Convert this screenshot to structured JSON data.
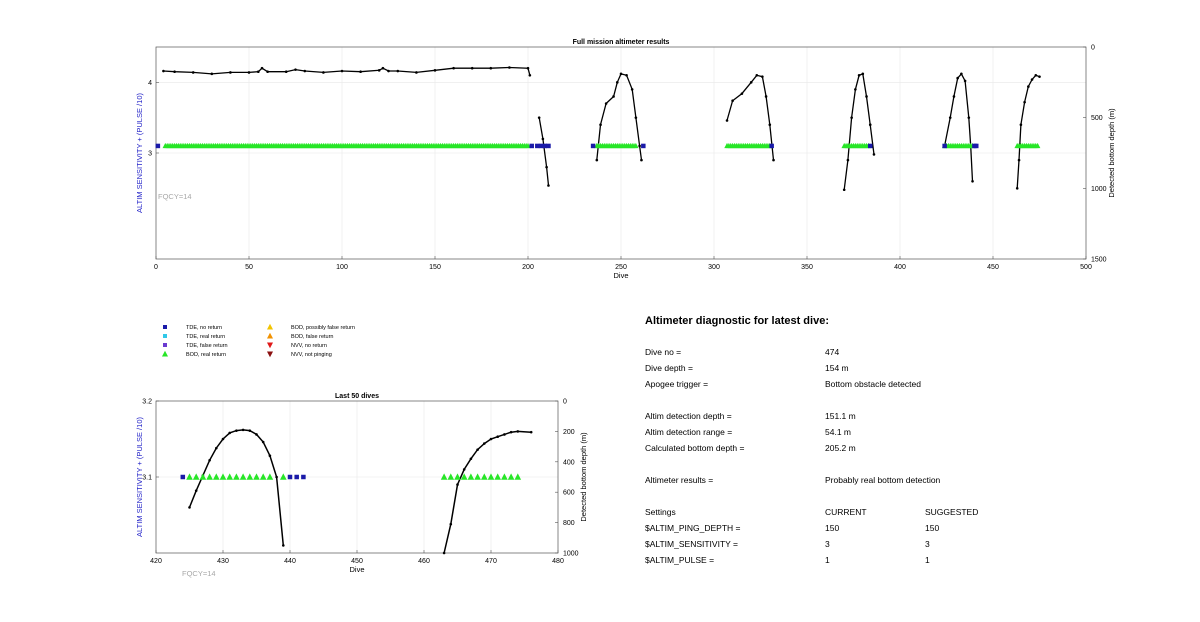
{
  "colors": {
    "blue_label": "#2323c8",
    "line": "#000000",
    "green": "#27e627",
    "blue_square": "#1a1aa8",
    "cyan": "#30c8e8",
    "purple": "#6a3ad0",
    "gold": "#f2c400",
    "orange": "#f29200",
    "red": "#e01818",
    "darkred": "#8b1010",
    "grid": "#e8e8e8",
    "fqcy": "#a8a8a8"
  },
  "legend": [
    {
      "label": "TDE, no return",
      "marker": "square",
      "color": "#1a1aa8"
    },
    {
      "label": "TDE, real return",
      "marker": "square",
      "color": "#30c8e8"
    },
    {
      "label": "TDE, false return",
      "marker": "square",
      "color": "#6a3ad0"
    },
    {
      "label": "BOD, real return",
      "marker": "triangle-up",
      "color": "#27e627"
    },
    {
      "label": "BOD, possibly false return",
      "marker": "triangle-up",
      "color": "#f2c400"
    },
    {
      "label": "BOD, false return",
      "marker": "triangle-up",
      "color": "#f29200"
    },
    {
      "label": "NVV, no return",
      "marker": "triangle-down",
      "color": "#e01818"
    },
    {
      "label": "NVV, not pinging",
      "marker": "triangle-down",
      "color": "#8b1010"
    }
  ],
  "chart_data": [
    {
      "type": "line",
      "title": "Full mission altimeter results",
      "xlabel": "Dive",
      "ylabel_left": "ALTIM SENSITIVITY + (PULSE /10)",
      "ylabel_right": "Detected bottom depth (m)",
      "annotation": "FQCY=14",
      "xlim": [
        0,
        500
      ],
      "xticks": [
        0,
        50,
        100,
        150,
        200,
        250,
        300,
        350,
        400,
        450,
        500
      ],
      "ylim_left": [
        1.5,
        4.5
      ],
      "yticks_left": [
        3,
        4
      ],
      "ylim_right": [
        0,
        1500
      ],
      "right_reversed": true,
      "yticks_right": [
        0,
        500,
        1000,
        1500
      ],
      "grid": true,
      "depth_series": [
        [
          [
            4,
            170
          ],
          [
            10,
            175
          ],
          [
            20,
            180
          ],
          [
            30,
            190
          ],
          [
            40,
            180
          ],
          [
            50,
            180
          ],
          [
            55,
            175
          ],
          [
            57,
            150
          ],
          [
            60,
            175
          ],
          [
            70,
            175
          ],
          [
            75,
            160
          ],
          [
            80,
            170
          ],
          [
            90,
            180
          ],
          [
            100,
            170
          ],
          [
            110,
            175
          ],
          [
            120,
            165
          ],
          [
            122,
            150
          ],
          [
            125,
            170
          ],
          [
            130,
            170
          ],
          [
            140,
            180
          ],
          [
            150,
            165
          ],
          [
            160,
            150
          ],
          [
            170,
            150
          ],
          [
            180,
            150
          ],
          [
            190,
            145
          ],
          [
            200,
            150
          ],
          [
            201,
            200
          ]
        ],
        [
          [
            206,
            500
          ],
          [
            208,
            650
          ],
          [
            210,
            850
          ],
          [
            211,
            980
          ]
        ],
        [
          [
            237,
            800
          ],
          [
            239,
            550
          ],
          [
            242,
            400
          ],
          [
            246,
            350
          ],
          [
            248,
            250
          ],
          [
            250,
            190
          ],
          [
            253,
            200
          ],
          [
            256,
            300
          ],
          [
            258,
            500
          ],
          [
            260,
            700
          ],
          [
            261,
            800
          ]
        ],
        [
          [
            307,
            520
          ],
          [
            310,
            380
          ],
          [
            315,
            330
          ],
          [
            320,
            250
          ],
          [
            323,
            200
          ],
          [
            326,
            210
          ],
          [
            328,
            350
          ],
          [
            330,
            550
          ],
          [
            332,
            800
          ]
        ],
        [
          [
            370,
            1010
          ],
          [
            372,
            800
          ],
          [
            374,
            500
          ],
          [
            376,
            300
          ],
          [
            378,
            200
          ],
          [
            380,
            190
          ],
          [
            382,
            350
          ],
          [
            384,
            550
          ],
          [
            386,
            760
          ]
        ],
        [
          [
            424,
            700
          ],
          [
            427,
            500
          ],
          [
            429,
            350
          ],
          [
            431,
            220
          ],
          [
            433,
            190
          ],
          [
            435,
            240
          ],
          [
            437,
            500
          ],
          [
            438,
            700
          ],
          [
            439,
            950
          ]
        ],
        [
          [
            463,
            1000
          ],
          [
            464,
            800
          ],
          [
            465,
            550
          ],
          [
            467,
            390
          ],
          [
            469,
            280
          ],
          [
            471,
            230
          ],
          [
            473,
            200
          ],
          [
            475,
            210
          ]
        ]
      ],
      "bod_series": [
        {
          "xmin": 5,
          "xmax": 200,
          "level": 3.1
        },
        {
          "xmin": 237,
          "xmax": 258,
          "level": 3.1
        },
        {
          "xmin": 307,
          "xmax": 330,
          "level": 3.1
        },
        {
          "xmin": 370,
          "xmax": 383,
          "level": 3.1
        },
        {
          "xmin": 424,
          "xmax": 439,
          "level": 3.1
        },
        {
          "xmin": 463,
          "xmax": 474,
          "level": 3.1
        }
      ],
      "tde_no_return_x": [
        1,
        202,
        205,
        207,
        209,
        211,
        235,
        262,
        331,
        384,
        424,
        440,
        441
      ]
    },
    {
      "type": "line",
      "title": "Last 50 dives",
      "xlabel": "Dive",
      "ylabel_left": "ALTIM SENSITIVITY + (PULSE /10)",
      "ylabel_right": "Detected bottom depth (m)",
      "annotation": "FQCY=14",
      "xlim": [
        420,
        480
      ],
      "xticks": [
        420,
        430,
        440,
        450,
        460,
        470,
        480
      ],
      "ylim_left": [
        3,
        3.2
      ],
      "yticks_left": [
        3.1,
        3.2
      ],
      "ylim_right": [
        0,
        1000
      ],
      "right_reversed": true,
      "yticks_right": [
        0,
        200,
        400,
        600,
        800,
        1000
      ],
      "grid": true,
      "depth_series": [
        [
          [
            425,
            700
          ],
          [
            426,
            590
          ],
          [
            427,
            490
          ],
          [
            428,
            390
          ],
          [
            429,
            310
          ],
          [
            430,
            250
          ],
          [
            431,
            210
          ],
          [
            432,
            195
          ],
          [
            433,
            190
          ],
          [
            434,
            195
          ],
          [
            435,
            220
          ],
          [
            436,
            270
          ],
          [
            437,
            360
          ],
          [
            438,
            500
          ],
          [
            439,
            950
          ]
        ],
        [
          [
            463,
            1000
          ],
          [
            464,
            810
          ],
          [
            465,
            550
          ],
          [
            466,
            450
          ],
          [
            467,
            380
          ],
          [
            468,
            320
          ],
          [
            469,
            280
          ],
          [
            470,
            250
          ],
          [
            471,
            235
          ],
          [
            472,
            220
          ],
          [
            473,
            205
          ],
          [
            474,
            200
          ],
          [
            476,
            205
          ]
        ]
      ],
      "bod_x": [
        425,
        426,
        427,
        428,
        429,
        430,
        431,
        432,
        433,
        434,
        435,
        436,
        437,
        439,
        463,
        464,
        465,
        466,
        467,
        468,
        469,
        470,
        471,
        472,
        473,
        474
      ],
      "bod_level": 3.1,
      "tde_no_return_x": [
        424,
        440,
        441,
        442
      ]
    }
  ],
  "diagnostic": {
    "title": "Altimeter diagnostic for latest dive:",
    "rows": [
      {
        "label": "Dive no =",
        "value": "474"
      },
      {
        "label": "Dive depth =",
        "value": "154 m"
      },
      {
        "label": "Apogee trigger =",
        "value": "Bottom obstacle detected"
      },
      {
        "label": "Altim detection depth =",
        "value": "151.1 m"
      },
      {
        "label": "Altim detection range =",
        "value": "54.1 m"
      },
      {
        "label": "Calculated bottom depth =",
        "value": "205.2 m"
      },
      {
        "label": "Altimeter results =",
        "value": "Probably real bottom detection"
      }
    ],
    "settings_header": {
      "label": "Settings",
      "current": "CURRENT",
      "suggested": "SUGGESTED"
    },
    "settings": [
      {
        "label": "$ALTIM_PING_DEPTH =",
        "current": "150",
        "suggested": "150"
      },
      {
        "label": "$ALTIM_SENSITIVITY =",
        "current": "3",
        "suggested": "3"
      },
      {
        "label": "$ALTIM_PULSE =",
        "current": "1",
        "suggested": "1"
      }
    ]
  }
}
